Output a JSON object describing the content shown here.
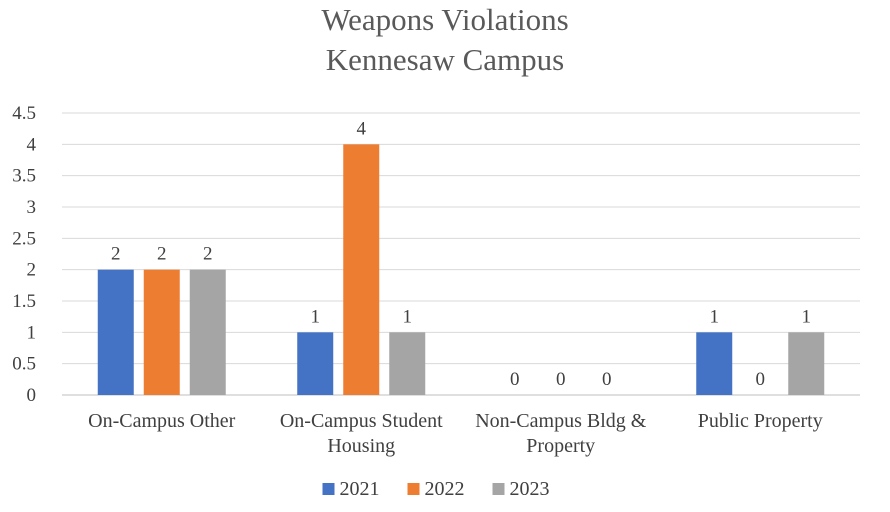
{
  "chart_data": {
    "type": "bar",
    "title": [
      "Weapons Violations",
      "Kennesaw Campus"
    ],
    "categories": [
      [
        "On-Campus Other"
      ],
      [
        "On-Campus Student",
        "Housing"
      ],
      [
        "Non-Campus Bldg &",
        "Property"
      ],
      [
        "Public Property"
      ]
    ],
    "series": [
      {
        "name": "2021",
        "color": "#4472c4",
        "values": [
          2,
          1,
          0,
          1
        ]
      },
      {
        "name": "2022",
        "color": "#ed7d31",
        "values": [
          2,
          4,
          0,
          0
        ]
      },
      {
        "name": "2023",
        "color": "#a5a5a5",
        "values": [
          2,
          1,
          0,
          1
        ]
      }
    ],
    "ylim": [
      0,
      4.5
    ],
    "yticks": [
      "0",
      "0.5",
      "1",
      "1.5",
      "2",
      "2.5",
      "3",
      "3.5",
      "4",
      "4.5"
    ],
    "grid": true,
    "legend": "bottom",
    "xlabel": "",
    "ylabel": ""
  }
}
